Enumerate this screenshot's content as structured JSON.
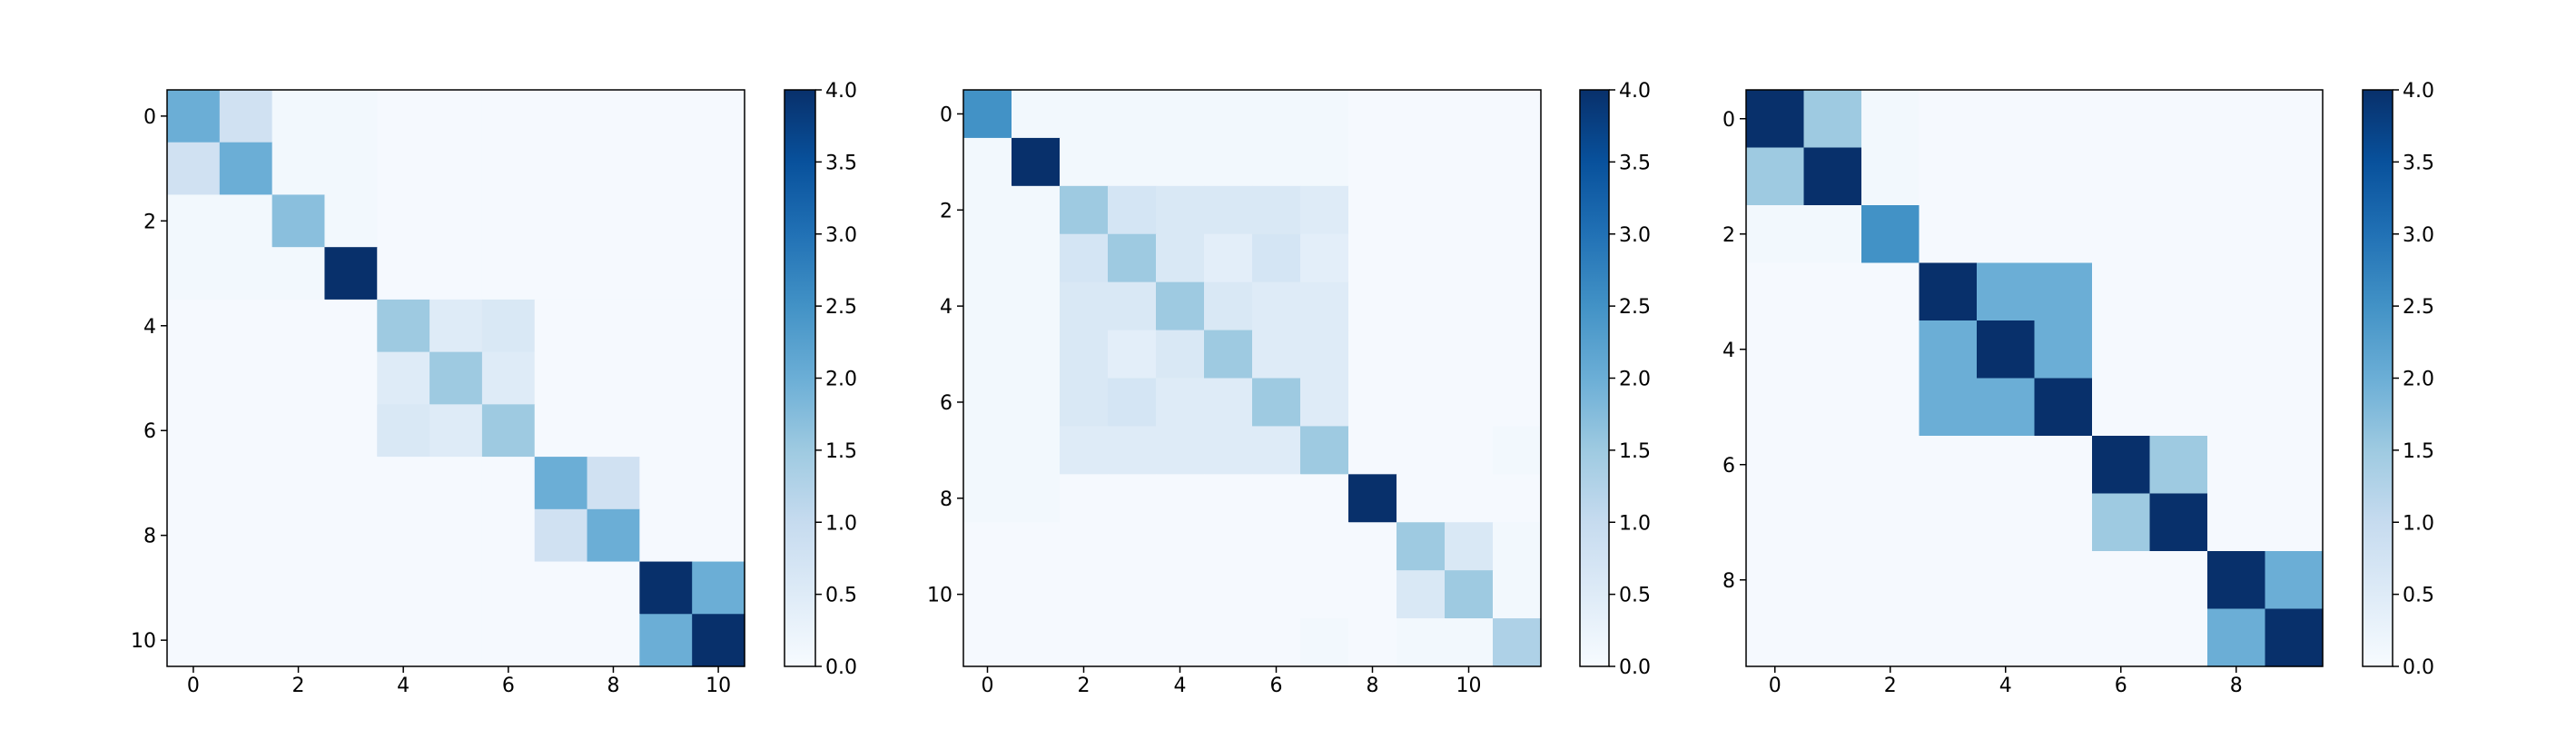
{
  "chart_data": [
    {
      "type": "heatmap",
      "title": "",
      "xlabel": "",
      "ylabel": "",
      "rows": 11,
      "cols": 11,
      "x_ticks": [
        0,
        2,
        4,
        6,
        8,
        10
      ],
      "y_ticks": [
        0,
        2,
        4,
        6,
        8,
        10
      ],
      "colormap": "Blues",
      "vmin": 0.0,
      "vmax": 4.0,
      "colorbar_ticks": [
        "0.0",
        "0.5",
        "1.0",
        "1.5",
        "2.0",
        "2.5",
        "3.0",
        "3.5",
        "4.0"
      ],
      "values": [
        [
          2.0,
          0.8,
          0.1,
          0.1,
          0.05,
          0.05,
          0.05,
          0.05,
          0.05,
          0.05,
          0.05
        ],
        [
          0.8,
          2.0,
          0.1,
          0.1,
          0.05,
          0.05,
          0.05,
          0.05,
          0.05,
          0.05,
          0.05
        ],
        [
          0.1,
          0.1,
          1.7,
          0.1,
          0.05,
          0.05,
          0.05,
          0.05,
          0.05,
          0.05,
          0.05
        ],
        [
          0.1,
          0.1,
          0.1,
          4.0,
          0.05,
          0.05,
          0.05,
          0.05,
          0.05,
          0.05,
          0.05
        ],
        [
          0.05,
          0.05,
          0.05,
          0.05,
          1.5,
          0.5,
          0.6,
          0.05,
          0.05,
          0.05,
          0.05
        ],
        [
          0.05,
          0.05,
          0.05,
          0.05,
          0.5,
          1.5,
          0.5,
          0.05,
          0.05,
          0.05,
          0.05
        ],
        [
          0.05,
          0.05,
          0.05,
          0.05,
          0.6,
          0.5,
          1.5,
          0.05,
          0.05,
          0.05,
          0.05
        ],
        [
          0.05,
          0.05,
          0.05,
          0.05,
          0.05,
          0.05,
          0.05,
          2.0,
          0.8,
          0.05,
          0.05
        ],
        [
          0.05,
          0.05,
          0.05,
          0.05,
          0.05,
          0.05,
          0.05,
          0.8,
          2.0,
          0.05,
          0.05
        ],
        [
          0.05,
          0.05,
          0.05,
          0.05,
          0.05,
          0.05,
          0.05,
          0.05,
          0.05,
          4.0,
          2.0
        ],
        [
          0.05,
          0.05,
          0.05,
          0.05,
          0.05,
          0.05,
          0.05,
          0.05,
          0.05,
          2.0,
          4.0
        ]
      ]
    },
    {
      "type": "heatmap",
      "title": "",
      "xlabel": "",
      "ylabel": "",
      "rows": 12,
      "cols": 12,
      "x_ticks": [
        0,
        2,
        4,
        6,
        8,
        10
      ],
      "y_ticks": [
        0,
        2,
        4,
        6,
        8,
        10
      ],
      "colormap": "Blues",
      "vmin": 0.0,
      "vmax": 4.0,
      "colorbar_ticks": [
        "0.0",
        "0.5",
        "1.0",
        "1.5",
        "2.0",
        "2.5",
        "3.0",
        "3.5",
        "4.0"
      ],
      "values": [
        [
          2.5,
          0.1,
          0.1,
          0.1,
          0.1,
          0.1,
          0.1,
          0.1,
          0.05,
          0.05,
          0.05,
          0.05
        ],
        [
          0.1,
          4.0,
          0.1,
          0.1,
          0.1,
          0.1,
          0.1,
          0.1,
          0.05,
          0.05,
          0.05,
          0.05
        ],
        [
          0.1,
          0.1,
          1.5,
          0.7,
          0.6,
          0.6,
          0.6,
          0.5,
          0.05,
          0.05,
          0.05,
          0.05
        ],
        [
          0.1,
          0.1,
          0.7,
          1.5,
          0.6,
          0.4,
          0.7,
          0.4,
          0.05,
          0.05,
          0.05,
          0.05
        ],
        [
          0.1,
          0.1,
          0.6,
          0.6,
          1.5,
          0.6,
          0.5,
          0.5,
          0.05,
          0.05,
          0.05,
          0.05
        ],
        [
          0.1,
          0.1,
          0.6,
          0.4,
          0.6,
          1.5,
          0.5,
          0.5,
          0.05,
          0.05,
          0.05,
          0.05
        ],
        [
          0.1,
          0.1,
          0.6,
          0.7,
          0.5,
          0.5,
          1.5,
          0.5,
          0.05,
          0.05,
          0.05,
          0.05
        ],
        [
          0.1,
          0.1,
          0.5,
          0.5,
          0.5,
          0.5,
          0.5,
          1.5,
          0.05,
          0.05,
          0.05,
          0.1
        ],
        [
          0.1,
          0.1,
          0.05,
          0.05,
          0.05,
          0.05,
          0.05,
          0.05,
          4.0,
          0.05,
          0.05,
          0.05
        ],
        [
          0.05,
          0.05,
          0.05,
          0.05,
          0.05,
          0.05,
          0.05,
          0.05,
          0.05,
          1.5,
          0.6,
          0.1
        ],
        [
          0.05,
          0.05,
          0.05,
          0.05,
          0.05,
          0.05,
          0.05,
          0.05,
          0.05,
          0.6,
          1.5,
          0.1
        ],
        [
          0.05,
          0.05,
          0.05,
          0.05,
          0.05,
          0.05,
          0.05,
          0.1,
          0.05,
          0.1,
          0.1,
          1.3
        ]
      ]
    },
    {
      "type": "heatmap",
      "title": "",
      "xlabel": "",
      "ylabel": "",
      "rows": 10,
      "cols": 10,
      "x_ticks": [
        0,
        2,
        4,
        6,
        8
      ],
      "y_ticks": [
        0,
        2,
        4,
        6,
        8
      ],
      "colormap": "Blues",
      "vmin": 0.0,
      "vmax": 4.0,
      "colorbar_ticks": [
        "0.0",
        "0.5",
        "1.0",
        "1.5",
        "2.0",
        "2.5",
        "3.0",
        "3.5",
        "4.0"
      ],
      "values": [
        [
          4.0,
          1.5,
          0.1,
          0.05,
          0.05,
          0.05,
          0.05,
          0.05,
          0.05,
          0.05
        ],
        [
          1.5,
          4.0,
          0.1,
          0.05,
          0.05,
          0.05,
          0.05,
          0.05,
          0.05,
          0.05
        ],
        [
          0.1,
          0.1,
          2.5,
          0.05,
          0.05,
          0.05,
          0.05,
          0.05,
          0.05,
          0.05
        ],
        [
          0.05,
          0.05,
          0.05,
          4.0,
          2.0,
          2.0,
          0.05,
          0.05,
          0.05,
          0.05
        ],
        [
          0.05,
          0.05,
          0.05,
          2.0,
          4.0,
          2.0,
          0.05,
          0.05,
          0.05,
          0.05
        ],
        [
          0.05,
          0.05,
          0.05,
          2.0,
          2.0,
          4.0,
          0.05,
          0.05,
          0.05,
          0.05
        ],
        [
          0.05,
          0.05,
          0.05,
          0.05,
          0.05,
          0.05,
          4.0,
          1.5,
          0.05,
          0.05
        ],
        [
          0.05,
          0.05,
          0.05,
          0.05,
          0.05,
          0.05,
          1.5,
          4.0,
          0.05,
          0.05
        ],
        [
          0.05,
          0.05,
          0.05,
          0.05,
          0.05,
          0.05,
          0.05,
          0.05,
          4.0,
          2.0
        ],
        [
          0.05,
          0.05,
          0.05,
          0.05,
          0.05,
          0.05,
          0.05,
          0.05,
          2.0,
          4.0
        ]
      ]
    }
  ]
}
